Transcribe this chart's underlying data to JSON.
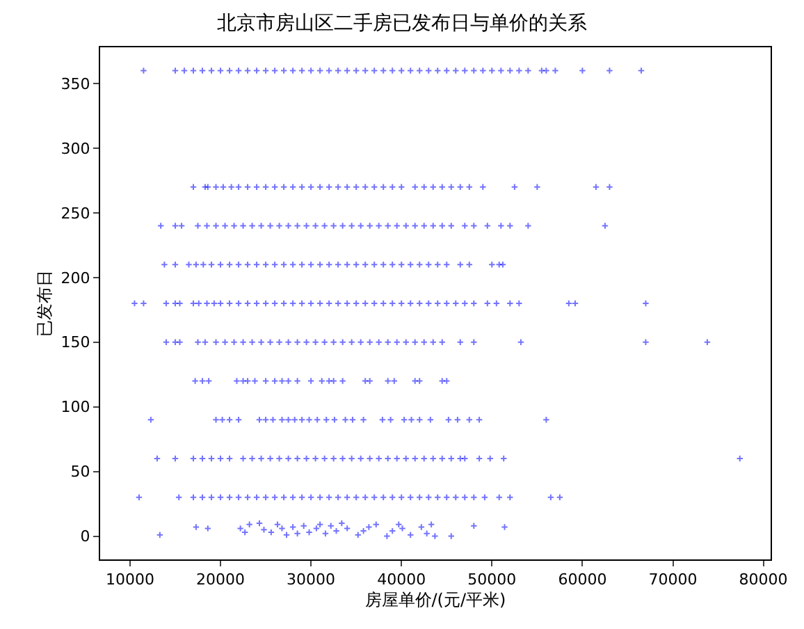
{
  "chart_data": {
    "type": "scatter",
    "title": "北京市房山区二手房已发布日与单价的关系",
    "xlabel": "房屋单价/(元/平米)",
    "ylabel": "已发布日",
    "xlim": [
      6700,
      80800
    ],
    "ylim": [
      -18,
      378
    ],
    "xticks": [
      10000,
      20000,
      30000,
      40000,
      50000,
      60000,
      70000,
      80000
    ],
    "yticks": [
      0,
      50,
      100,
      150,
      200,
      250,
      300,
      350
    ],
    "marker": "cross",
    "series": [
      {
        "color": "#0000ff",
        "x": [
          11500,
          15000,
          16000,
          17000,
          18000,
          19000,
          20000,
          21000,
          22000,
          23000,
          24000,
          25000,
          26000,
          27000,
          28000,
          29000,
          30000,
          31000,
          32000,
          33000,
          34000,
          35000,
          36000,
          37000,
          38000,
          39000,
          40000,
          41000,
          42000,
          43000,
          44000,
          45000,
          46000,
          47000,
          48000,
          49000,
          50000,
          51000,
          52000,
          53000,
          54000,
          55500,
          56000,
          57000,
          60000,
          63000,
          66500,
          17000,
          18300,
          18600,
          19500,
          20300,
          21200,
          22000,
          23000,
          24000,
          25000,
          26000,
          27000,
          28000,
          29000,
          30000,
          31000,
          32000,
          33000,
          34000,
          35000,
          36000,
          37000,
          38000,
          39000,
          40000,
          41500,
          42500,
          43500,
          44500,
          45500,
          46500,
          47500,
          49000,
          52500,
          55000,
          61500,
          63000,
          13400,
          15000,
          15700,
          17500,
          18500,
          19500,
          20500,
          21500,
          22500,
          23500,
          24500,
          25500,
          26500,
          27500,
          28500,
          29500,
          30500,
          31500,
          32500,
          33500,
          34500,
          35500,
          36500,
          37500,
          38500,
          39500,
          40500,
          41500,
          42500,
          43500,
          44500,
          45500,
          47000,
          48000,
          49500,
          51000,
          52000,
          54000,
          62500,
          13800,
          15000,
          16500,
          17300,
          18100,
          19000,
          20000,
          21000,
          22000,
          23000,
          24000,
          25000,
          26000,
          27000,
          28000,
          29000,
          30000,
          31000,
          32000,
          33000,
          34000,
          35000,
          36000,
          37000,
          38000,
          39000,
          40000,
          41000,
          42000,
          43000,
          44000,
          45000,
          46500,
          47500,
          50000,
          50800,
          51200,
          10500,
          11500,
          14000,
          15000,
          15500,
          17000,
          17600,
          18500,
          19300,
          20000,
          21000,
          22000,
          23000,
          24000,
          25000,
          26000,
          27000,
          28000,
          29000,
          30000,
          31000,
          32000,
          33000,
          34000,
          35000,
          36000,
          37000,
          38000,
          39000,
          40000,
          41000,
          42000,
          43000,
          44000,
          45000,
          46000,
          47000,
          48000,
          49500,
          50500,
          52000,
          53000,
          58500,
          59200,
          67000,
          14000,
          15000,
          15500,
          17500,
          18300,
          19500,
          20500,
          21500,
          22500,
          23500,
          24500,
          25500,
          26500,
          27500,
          28500,
          29500,
          30500,
          31500,
          32500,
          33500,
          34500,
          35500,
          36500,
          37500,
          38500,
          39500,
          40500,
          41500,
          42500,
          43500,
          44500,
          46500,
          48000,
          53200,
          67000,
          73800,
          17200,
          18000,
          18700,
          21800,
          22500,
          23000,
          23800,
          25000,
          26000,
          26800,
          27500,
          28500,
          30000,
          31200,
          32000,
          32500,
          33500,
          36000,
          36500,
          38500,
          39200,
          41500,
          42000,
          44500,
          45000,
          12300,
          19500,
          20200,
          21000,
          22000,
          24300,
          25000,
          25800,
          26800,
          27500,
          28200,
          29000,
          29800,
          30700,
          31700,
          32600,
          33800,
          34600,
          35800,
          37900,
          38800,
          40300,
          41100,
          42000,
          43200,
          45200,
          46200,
          47500,
          48600,
          56000,
          13000,
          15000,
          17000,
          18000,
          19000,
          20000,
          21000,
          22500,
          23500,
          24500,
          25500,
          26500,
          27500,
          28500,
          29500,
          30500,
          31500,
          32500,
          33500,
          34500,
          35500,
          36500,
          37500,
          38500,
          39500,
          40500,
          41500,
          42500,
          43500,
          44500,
          45500,
          46500,
          47000,
          48600,
          49800,
          51300,
          77400,
          11000,
          15400,
          17000,
          18000,
          19000,
          20000,
          21000,
          22000,
          23000,
          24000,
          25000,
          26000,
          27000,
          28000,
          29000,
          30000,
          31000,
          32000,
          33000,
          34000,
          35000,
          36000,
          37000,
          38000,
          39000,
          40000,
          41000,
          42000,
          43000,
          44000,
          45000,
          46000,
          47000,
          48000,
          49200,
          50800,
          52000,
          56500,
          57500,
          13300,
          17300,
          18600,
          22200,
          22700,
          23200,
          24300,
          24800,
          25600,
          26300,
          26800,
          27300,
          28000,
          28500,
          29200,
          29800,
          30600,
          31000,
          31600,
          32200,
          32800,
          33400,
          34000,
          35200,
          35800,
          36400,
          37200,
          38400,
          39000,
          39700,
          40100,
          41000,
          42200,
          42800,
          43300,
          43700,
          45500,
          48000,
          51400
        ],
        "values": [
          360,
          360,
          360,
          360,
          360,
          360,
          360,
          360,
          360,
          360,
          360,
          360,
          360,
          360,
          360,
          360,
          360,
          360,
          360,
          360,
          360,
          360,
          360,
          360,
          360,
          360,
          360,
          360,
          360,
          360,
          360,
          360,
          360,
          360,
          360,
          360,
          360,
          360,
          360,
          360,
          360,
          360,
          360,
          360,
          360,
          360,
          360,
          270,
          270,
          270,
          270,
          270,
          270,
          270,
          270,
          270,
          270,
          270,
          270,
          270,
          270,
          270,
          270,
          270,
          270,
          270,
          270,
          270,
          270,
          270,
          270,
          270,
          270,
          270,
          270,
          270,
          270,
          270,
          270,
          270,
          270,
          270,
          270,
          270,
          240,
          240,
          240,
          240,
          240,
          240,
          240,
          240,
          240,
          240,
          240,
          240,
          240,
          240,
          240,
          240,
          240,
          240,
          240,
          240,
          240,
          240,
          240,
          240,
          240,
          240,
          240,
          240,
          240,
          240,
          240,
          240,
          240,
          240,
          240,
          240,
          240,
          240,
          240,
          210,
          210,
          210,
          210,
          210,
          210,
          210,
          210,
          210,
          210,
          210,
          210,
          210,
          210,
          210,
          210,
          210,
          210,
          210,
          210,
          210,
          210,
          210,
          210,
          210,
          210,
          210,
          210,
          210,
          210,
          210,
          210,
          210,
          210,
          210,
          210,
          210,
          180,
          180,
          180,
          180,
          180,
          180,
          180,
          180,
          180,
          180,
          180,
          180,
          180,
          180,
          180,
          180,
          180,
          180,
          180,
          180,
          180,
          180,
          180,
          180,
          180,
          180,
          180,
          180,
          180,
          180,
          180,
          180,
          180,
          180,
          180,
          180,
          180,
          180,
          180,
          180,
          180,
          180,
          180,
          180,
          180,
          150,
          150,
          150,
          150,
          150,
          150,
          150,
          150,
          150,
          150,
          150,
          150,
          150,
          150,
          150,
          150,
          150,
          150,
          150,
          150,
          150,
          150,
          150,
          150,
          150,
          150,
          150,
          150,
          150,
          150,
          150,
          150,
          150,
          150,
          150,
          150,
          120,
          120,
          120,
          120,
          120,
          120,
          120,
          120,
          120,
          120,
          120,
          120,
          120,
          120,
          120,
          120,
          120,
          120,
          120,
          120,
          120,
          120,
          120,
          120,
          120,
          90,
          90,
          90,
          90,
          90,
          90,
          90,
          90,
          90,
          90,
          90,
          90,
          90,
          90,
          90,
          90,
          90,
          90,
          90,
          90,
          90,
          90,
          90,
          90,
          90,
          90,
          90,
          90,
          90,
          90,
          60,
          60,
          60,
          60,
          60,
          60,
          60,
          60,
          60,
          60,
          60,
          60,
          60,
          60,
          60,
          60,
          60,
          60,
          60,
          60,
          60,
          60,
          60,
          60,
          60,
          60,
          60,
          60,
          60,
          60,
          60,
          60,
          60,
          60,
          60,
          60,
          60,
          30,
          30,
          30,
          30,
          30,
          30,
          30,
          30,
          30,
          30,
          30,
          30,
          30,
          30,
          30,
          30,
          30,
          30,
          30,
          30,
          30,
          30,
          30,
          30,
          30,
          30,
          30,
          30,
          30,
          30,
          30,
          30,
          30,
          30,
          30,
          30,
          30,
          30,
          30,
          1,
          7,
          6,
          6,
          3,
          9,
          10,
          5,
          3,
          9,
          6,
          1,
          7,
          2,
          8,
          3,
          6,
          9,
          2,
          8,
          4,
          10,
          6,
          1,
          4,
          7,
          9,
          0,
          4,
          9,
          6,
          1,
          7,
          2,
          9,
          0,
          0,
          8,
          7
        ]
      }
    ]
  }
}
